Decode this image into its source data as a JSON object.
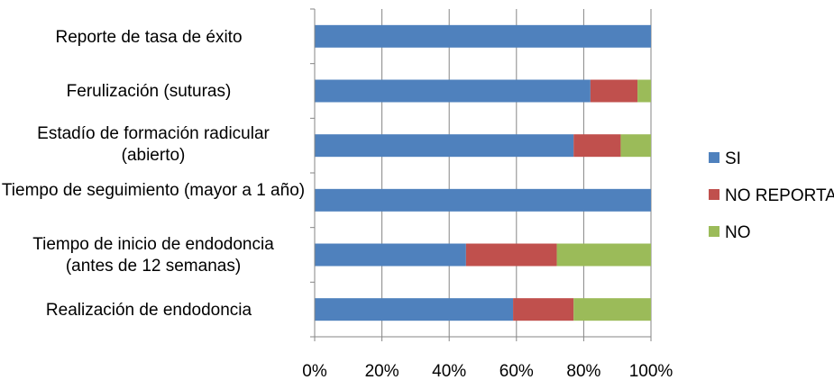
{
  "chart_data": {
    "type": "bar",
    "orientation": "horizontal",
    "stacked": "percent",
    "categories": [
      "Reporte de tasa de éxito",
      "Ferulización (suturas)",
      "Estadío de formación radicular (abierto)",
      "Tiempo de seguimiento (mayor a 1 año)",
      "Tiempo de inicio de endodoncia (antes de 12 semanas)",
      "Realización de endodoncia"
    ],
    "series": [
      {
        "name": "SI",
        "color": "#4F81BD",
        "values": [
          100,
          82,
          77,
          100,
          45,
          59
        ]
      },
      {
        "name": "NO REPORTA",
        "color": "#C0504D",
        "values": [
          0,
          14,
          14,
          0,
          27,
          18
        ]
      },
      {
        "name": "NO",
        "color": "#9BBB59",
        "values": [
          0,
          4,
          9,
          0,
          28,
          23
        ]
      }
    ],
    "x_ticks": [
      "0%",
      "20%",
      "40%",
      "60%",
      "80%",
      "100%"
    ],
    "xlim": [
      0,
      100
    ],
    "grid": true,
    "legend_position": "right"
  }
}
